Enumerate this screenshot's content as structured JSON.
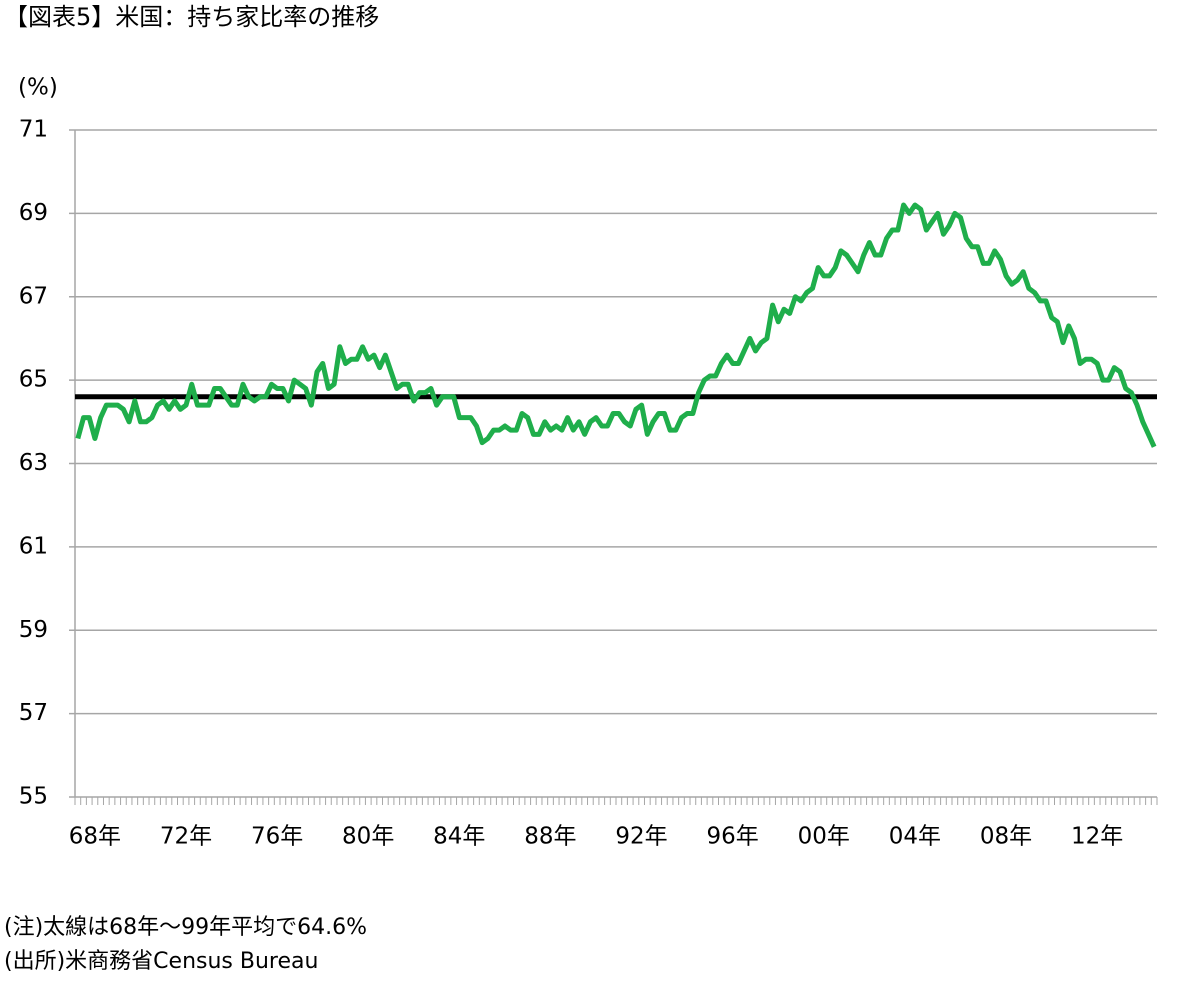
{
  "chart_data": {
    "type": "line",
    "title": "【図表5】米国：持ち家比率の推移",
    "y_label": "(%)",
    "notes": [
      "(注)太線は68年～99年平均で64.6%",
      "(出所)米商務省Census Bureau"
    ],
    "categories": [
      "68年",
      null,
      null,
      null,
      null,
      null,
      null,
      null,
      null,
      null,
      null,
      null,
      null,
      null,
      null,
      null,
      "72年",
      null,
      null,
      null,
      null,
      null,
      null,
      null,
      null,
      null,
      null,
      null,
      null,
      null,
      null,
      null,
      "76年",
      null,
      null,
      null,
      null,
      null,
      null,
      null,
      null,
      null,
      null,
      null,
      null,
      null,
      null,
      null,
      "80年",
      null,
      null,
      null,
      null,
      null,
      null,
      null,
      null,
      null,
      null,
      null,
      null,
      null,
      null,
      null,
      "84年",
      null,
      null,
      null,
      null,
      null,
      null,
      null,
      null,
      null,
      null,
      null,
      null,
      null,
      null,
      null,
      "88年",
      null,
      null,
      null,
      null,
      null,
      null,
      null,
      null,
      null,
      null,
      null,
      null,
      null,
      null,
      null,
      "92年",
      null,
      null,
      null,
      null,
      null,
      null,
      null,
      null,
      null,
      null,
      null,
      null,
      null,
      null,
      null,
      "96年",
      null,
      null,
      null,
      null,
      null,
      null,
      null,
      null,
      null,
      null,
      null,
      null,
      null,
      null,
      null,
      "00年",
      null,
      null,
      null,
      null,
      null,
      null,
      null,
      null,
      null,
      null,
      null,
      null,
      null,
      null,
      null,
      "04年",
      null,
      null,
      null,
      null,
      null,
      null,
      null,
      null,
      null,
      null,
      null,
      null,
      null,
      null,
      null,
      "08年",
      null,
      null,
      null,
      null,
      null,
      null,
      null,
      null,
      null,
      null,
      null,
      null,
      null,
      null,
      null,
      "12年",
      null,
      null,
      null,
      null,
      null,
      null,
      null,
      null,
      null,
      null,
      null,
      null,
      null
    ],
    "series": [
      {
        "name": "持ち家比率",
        "color": "#1fae4b",
        "values": [
          63.6,
          64.1,
          64.1,
          63.6,
          64.1,
          64.4,
          64.4,
          64.4,
          64.3,
          64.0,
          64.5,
          64.0,
          64.0,
          64.1,
          64.4,
          64.5,
          64.3,
          64.5,
          64.3,
          64.4,
          64.9,
          64.4,
          64.4,
          64.4,
          64.8,
          64.8,
          64.6,
          64.4,
          64.4,
          64.9,
          64.6,
          64.5,
          64.6,
          64.6,
          64.9,
          64.8,
          64.8,
          64.5,
          65.0,
          64.9,
          64.8,
          64.4,
          65.2,
          65.4,
          64.8,
          64.9,
          65.8,
          65.4,
          65.5,
          65.5,
          65.8,
          65.5,
          65.6,
          65.3,
          65.6,
          65.2,
          64.8,
          64.9,
          64.9,
          64.5,
          64.7,
          64.7,
          64.8,
          64.4,
          64.6,
          64.6,
          64.6,
          64.1,
          64.1,
          64.1,
          63.9,
          63.5,
          63.6,
          63.8,
          63.8,
          63.9,
          63.8,
          63.8,
          64.2,
          64.1,
          63.7,
          63.7,
          64.0,
          63.8,
          63.9,
          63.8,
          64.1,
          63.8,
          64.0,
          63.7,
          64.0,
          64.1,
          63.9,
          63.9,
          64.2,
          64.2,
          64.0,
          63.9,
          64.3,
          64.4,
          63.7,
          64.0,
          64.2,
          64.2,
          63.8,
          63.8,
          64.1,
          64.2,
          64.2,
          64.7,
          65.0,
          65.1,
          65.1,
          65.4,
          65.6,
          65.4,
          65.4,
          65.7,
          66.0,
          65.7,
          65.9,
          66.0,
          66.8,
          66.4,
          66.7,
          66.6,
          67.0,
          66.9,
          67.1,
          67.2,
          67.7,
          67.5,
          67.5,
          67.7,
          68.1,
          68.0,
          67.8,
          67.6,
          68.0,
          68.3,
          68.0,
          68.0,
          68.4,
          68.6,
          68.6,
          69.2,
          69.0,
          69.2,
          69.1,
          68.6,
          68.8,
          69.0,
          68.5,
          68.7,
          69.0,
          68.9,
          68.4,
          68.2,
          68.2,
          67.8,
          67.8,
          68.1,
          67.9,
          67.5,
          67.3,
          67.4,
          67.6,
          67.2,
          67.1,
          66.9,
          66.9,
          66.5,
          66.4,
          65.9,
          66.3,
          66.0,
          65.4,
          65.5,
          65.5,
          65.4,
          65.0,
          65.0,
          65.3,
          65.2,
          64.8,
          64.7,
          64.4,
          64.0,
          63.7,
          63.4
        ]
      }
    ],
    "average": {
      "value": 64.6,
      "color": "#000000"
    },
    "ylim": [
      55,
      71
    ],
    "yticks": [
      55,
      57,
      59,
      61,
      63,
      65,
      67,
      69,
      71
    ],
    "grid": true
  }
}
